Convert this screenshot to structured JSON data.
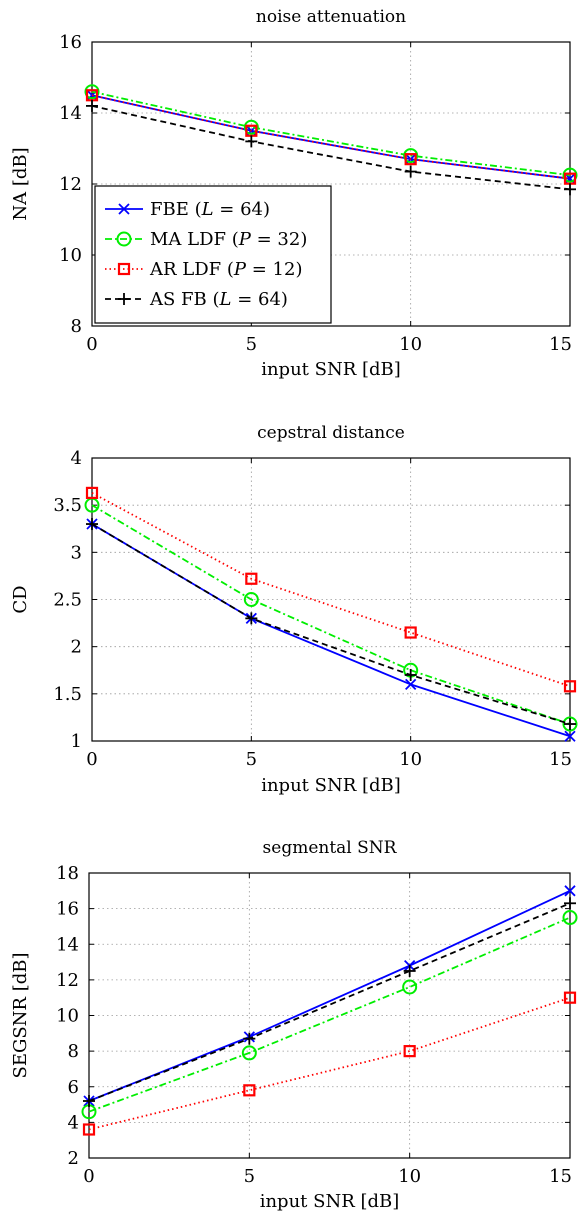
{
  "chart_data": [
    {
      "type": "line",
      "title": "noise attenuation",
      "xlabel": "input SNR [dB]",
      "ylabel": "NA [dB]",
      "x": [
        0,
        5,
        10,
        15
      ],
      "xlim": [
        0,
        15
      ],
      "ylim": [
        8,
        16
      ],
      "xticks": [
        "0",
        "5",
        "10",
        "15"
      ],
      "yticks": [
        "8",
        "10",
        "12",
        "14",
        "16"
      ],
      "grid": true,
      "legend": "bottom-left",
      "series": [
        {
          "name": "FBE (L = 64)",
          "values": [
            14.5,
            13.5,
            12.7,
            12.15
          ],
          "color": "#0000ff",
          "dash": "",
          "marker": "x"
        },
        {
          "name": "MA LDF (P = 32)",
          "values": [
            14.6,
            13.6,
            12.8,
            12.25
          ],
          "color": "#00ee00",
          "dash": "7 3 2 3",
          "marker": "o"
        },
        {
          "name": "AR LDF (P = 12)",
          "values": [
            14.5,
            13.5,
            12.7,
            12.15
          ],
          "color": "#ff0000",
          "dash": "1.5 3",
          "marker": "s"
        },
        {
          "name": "AS FB (L = 64)",
          "values": [
            14.2,
            13.2,
            12.35,
            11.85
          ],
          "color": "#000000",
          "dash": "6 4",
          "marker": "+"
        }
      ]
    },
    {
      "type": "line",
      "title": "cepstral distance",
      "xlabel": "input SNR [dB]",
      "ylabel": "CD",
      "x": [
        0,
        5,
        10,
        15
      ],
      "xlim": [
        0,
        15
      ],
      "ylim": [
        1,
        4
      ],
      "xticks": [
        "0",
        "5",
        "10",
        "15"
      ],
      "yticks": [
        "1",
        "1.5",
        "2",
        "2.5",
        "3",
        "3.5",
        "4"
      ],
      "grid": true,
      "series": [
        {
          "values": [
            3.3,
            2.3,
            1.6,
            1.05
          ],
          "color": "#0000ff",
          "dash": "",
          "marker": "x"
        },
        {
          "values": [
            3.5,
            2.5,
            1.75,
            1.18
          ],
          "color": "#00ee00",
          "dash": "7 3 2 3",
          "marker": "o"
        },
        {
          "values": [
            3.63,
            2.72,
            2.15,
            1.58
          ],
          "color": "#ff0000",
          "dash": "1.5 3",
          "marker": "s"
        },
        {
          "values": [
            3.3,
            2.3,
            1.7,
            1.18
          ],
          "color": "#000000",
          "dash": "6 4",
          "marker": "+"
        }
      ]
    },
    {
      "type": "line",
      "title": "segmental SNR",
      "xlabel": "input SNR [dB]",
      "ylabel": "SEGSNR [dB]",
      "x": [
        0,
        5,
        10,
        15
      ],
      "xlim": [
        0,
        15
      ],
      "ylim": [
        2,
        18
      ],
      "xticks": [
        "0",
        "5",
        "10",
        "15"
      ],
      "yticks": [
        "2",
        "4",
        "6",
        "8",
        "10",
        "12",
        "14",
        "16",
        "18"
      ],
      "grid": true,
      "series": [
        {
          "values": [
            5.2,
            8.8,
            12.8,
            17.0
          ],
          "color": "#0000ff",
          "dash": "",
          "marker": "x"
        },
        {
          "values": [
            4.6,
            7.9,
            11.6,
            15.5
          ],
          "color": "#00ee00",
          "dash": "7 3 2 3",
          "marker": "o"
        },
        {
          "values": [
            3.6,
            5.8,
            8.0,
            11.0
          ],
          "color": "#ff0000",
          "dash": "1.5 3",
          "marker": "s"
        },
        {
          "values": [
            5.2,
            8.7,
            12.5,
            16.3
          ],
          "color": "#000000",
          "dash": "6 4",
          "marker": "+"
        }
      ]
    }
  ],
  "legend": {
    "labels": [
      {
        "text": "FBE (",
        "var": "L",
        "eq": " = 64)"
      },
      {
        "text": "MA LDF (",
        "var": "P",
        "eq": " = 32)"
      },
      {
        "text": "AR LDF (",
        "var": "P",
        "eq": " = 12)"
      },
      {
        "text": "AS FB (",
        "var": "L",
        "eq": " = 64)"
      }
    ]
  }
}
